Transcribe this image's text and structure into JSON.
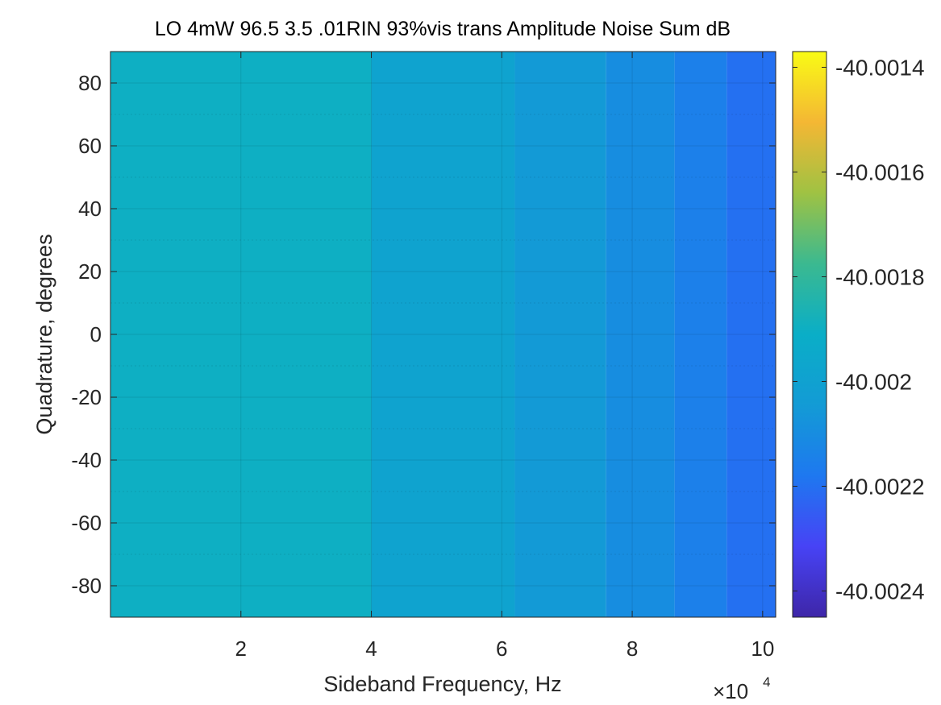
{
  "chart_data": {
    "type": "heatmap",
    "title": "LO 4mW 96.5 3.5 .01RIN 93%vis trans Amplitude Noise Sum dB",
    "xlabel": "Sideband Frequency, Hz",
    "ylabel": "Quadrature, degrees",
    "x_exponent_label": "×10",
    "x_exponent_power": "4",
    "x_exponent": 4,
    "xlim": [
      0,
      102000
    ],
    "ylim": [
      -90,
      90
    ],
    "xticks": [
      20000,
      40000,
      60000,
      80000,
      100000
    ],
    "xtick_labels": [
      "2",
      "4",
      "6",
      "8",
      "10"
    ],
    "yticks": [
      80,
      60,
      40,
      20,
      0,
      -20,
      -40,
      -60,
      -80
    ],
    "ytick_labels": [
      "80",
      "60",
      "40",
      "20",
      "0",
      "-20",
      "-40",
      "-60",
      "-80"
    ],
    "grid": true,
    "colormap": "parula",
    "colorbar": {
      "placement": "right",
      "clim": [
        -40.00245,
        -40.00137
      ],
      "ticks": [
        -40.0014,
        -40.0016,
        -40.0018,
        -40.002,
        -40.0022,
        -40.0024
      ],
      "tick_labels": [
        "-40.0014",
        "-40.0016",
        "-40.0018",
        "-40.002",
        "-40.0022",
        "-40.0024"
      ]
    },
    "x_band_edges": [
      0,
      40000,
      62000,
      76000,
      86500,
      94500,
      102000
    ],
    "band_values": [
      -40.0019,
      -40.00199,
      -40.00205,
      -40.0021,
      -40.00215,
      -40.0022
    ],
    "y_constant": true
  }
}
